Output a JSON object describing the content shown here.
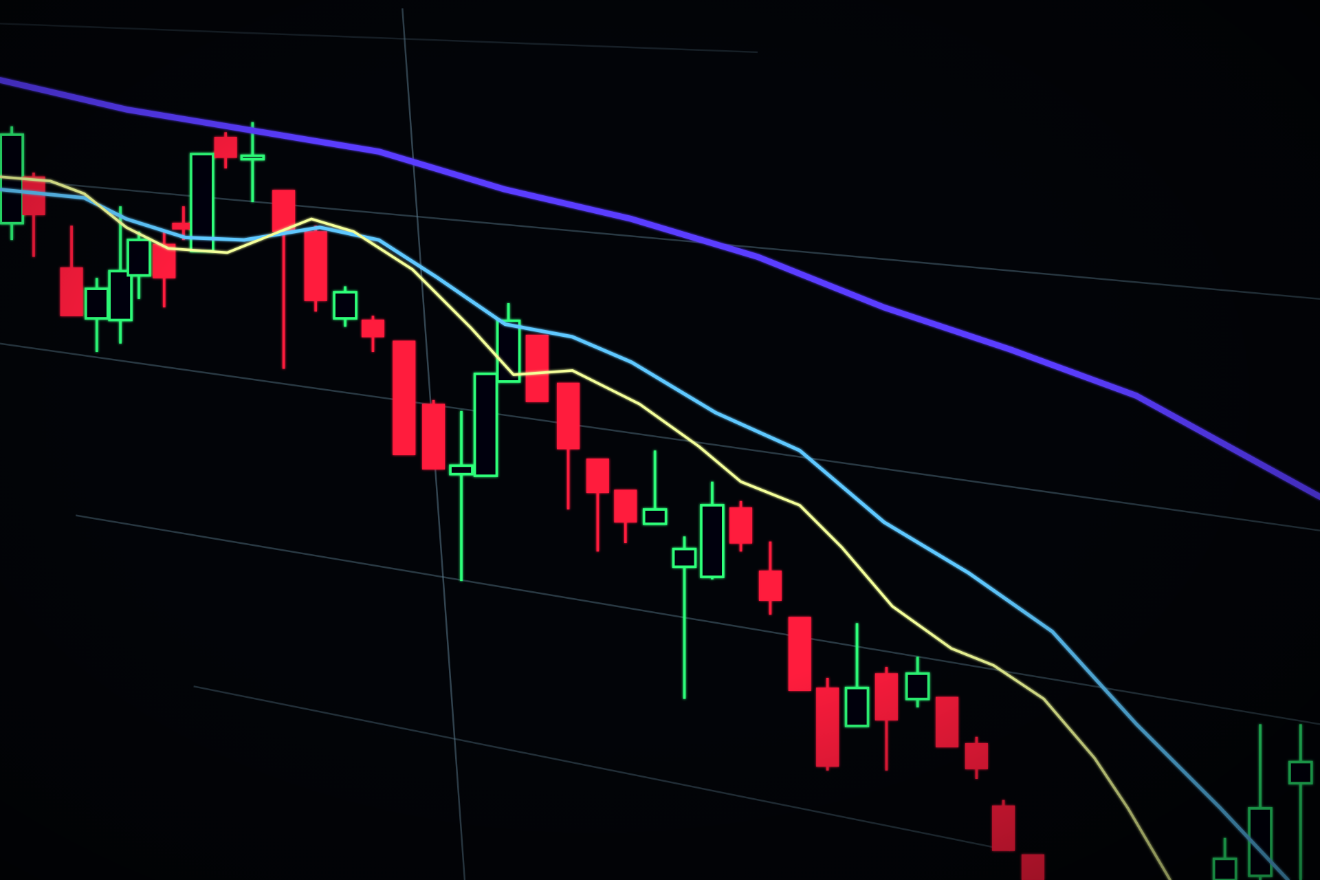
{
  "scene": {
    "subject": "candlestick-chart-on-screen",
    "colors": {
      "background": "#020408",
      "bearish_candle": "#ff1a3c",
      "bullish_candle": "#2dff7a",
      "moving_average_long": "#5a3cff",
      "moving_average_mid": "#5ec8ff",
      "moving_average_short": "#f4ff9a",
      "grid": "#5a7a8c"
    }
  }
}
